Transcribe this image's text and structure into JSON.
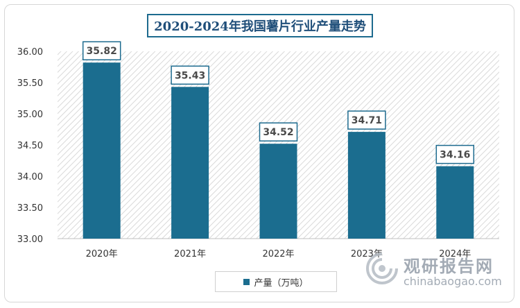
{
  "chart_data": {
    "type": "bar",
    "title": "2020-2024年我国薯片行业产量走势",
    "categories": [
      "2020年",
      "2021年",
      "2022年",
      "2023年",
      "2024年"
    ],
    "series": [
      {
        "name": "产量（万吨）",
        "values": [
          35.82,
          35.43,
          34.52,
          34.71,
          34.16
        ],
        "color": "#1b6d8f"
      }
    ],
    "data_labels": [
      "35.82",
      "35.43",
      "34.52",
      "34.71",
      "34.16"
    ],
    "y_ticks": [
      "36.00",
      "35.50",
      "35.00",
      "34.50",
      "34.00",
      "33.50",
      "33.00"
    ],
    "ylim": [
      33.0,
      36.0
    ],
    "xlabel": "",
    "ylabel": "",
    "grid": "hatched plot background",
    "legend_position": "bottom"
  },
  "watermark": {
    "text_cn": "观研报告网",
    "text_en": "chinabaogao.com"
  },
  "colors": {
    "bar": "#1b6d8f",
    "title_border": "#1c6a8e",
    "title_text": "#1f4e79",
    "label_border": "#1c6a8e"
  }
}
